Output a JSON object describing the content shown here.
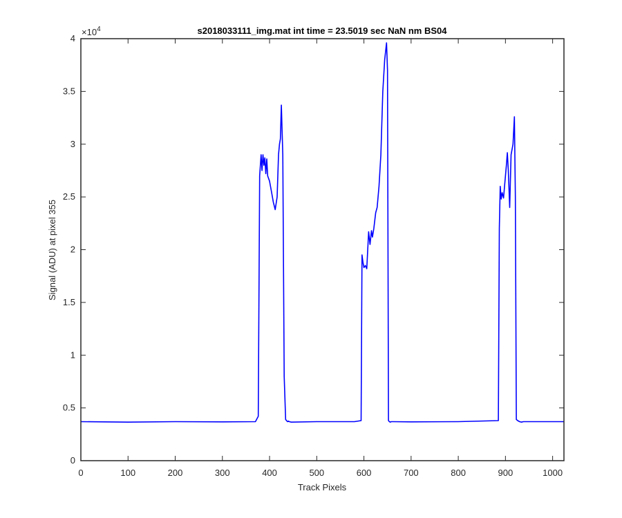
{
  "chart_data": {
    "type": "line",
    "title": "s2018033111_img.mat int time = 23.5019 sec  NaN nm BS04",
    "xlabel": "Track Pixels",
    "ylabel": "Signal (ADU) at pixel 355",
    "xlim": [
      0,
      1024
    ],
    "ylim": [
      0,
      40000
    ],
    "y_exponent_label": "×10",
    "y_exponent_power": "4",
    "x_ticks": [
      0,
      100,
      200,
      300,
      400,
      500,
      600,
      700,
      800,
      900,
      1000
    ],
    "x_tick_labels": [
      "0",
      "100",
      "200",
      "300",
      "400",
      "500",
      "600",
      "700",
      "800",
      "900",
      "1000"
    ],
    "y_ticks": [
      0,
      5000,
      10000,
      15000,
      20000,
      25000,
      30000,
      35000,
      40000
    ],
    "y_tick_labels": [
      "0",
      "0.5",
      "1",
      "1.5",
      "2",
      "2.5",
      "3",
      "3.5",
      "4"
    ],
    "grid": false,
    "line_color": "#0000ff",
    "series": [
      {
        "x": [
          0,
          100,
          200,
          300,
          370,
          376,
          379,
          382,
          384,
          386,
          388,
          390,
          392,
          394,
          396,
          400,
          404,
          408,
          412,
          416,
          419,
          421,
          423,
          425,
          428,
          431,
          434,
          436,
          438,
          440,
          442,
          446,
          500,
          580,
          594,
          596,
          598,
          600,
          603,
          606,
          610,
          613,
          616,
          618,
          621,
          625,
          628,
          632,
          636,
          640,
          644,
          648,
          650,
          652,
          654,
          656,
          658,
          660,
          700,
          800,
          885,
          887,
          889,
          891,
          893,
          896,
          899,
          902,
          904,
          906,
          909,
          912,
          916,
          919,
          921,
          923,
          926,
          930,
          934,
          938,
          942,
          944,
          946,
          948,
          950,
          953,
          1000,
          1024
        ],
        "y": [
          3700,
          3650,
          3700,
          3680,
          3700,
          4200,
          27000,
          29000,
          27500,
          29000,
          28000,
          28700,
          27200,
          28600,
          27000,
          26500,
          25500,
          24500,
          23800,
          25000,
          29000,
          30000,
          30500,
          33700,
          29000,
          8000,
          3900,
          3800,
          3700,
          3750,
          3700,
          3650,
          3700,
          3700,
          3800,
          19500,
          18800,
          18300,
          18500,
          18200,
          21700,
          20500,
          21800,
          21200,
          22000,
          23500,
          24000,
          26000,
          29000,
          35000,
          38000,
          39600,
          37000,
          3800,
          3700,
          3650,
          3700,
          3700,
          3680,
          3700,
          3800,
          22000,
          26000,
          24800,
          25400,
          24900,
          26500,
          28000,
          29200,
          27500,
          24000,
          29000,
          30000,
          32600,
          25000,
          3900,
          3800,
          3700,
          3650,
          3700,
          3700,
          3700,
          3700,
          3700,
          3700,
          3700,
          3700,
          3700
        ]
      }
    ]
  }
}
